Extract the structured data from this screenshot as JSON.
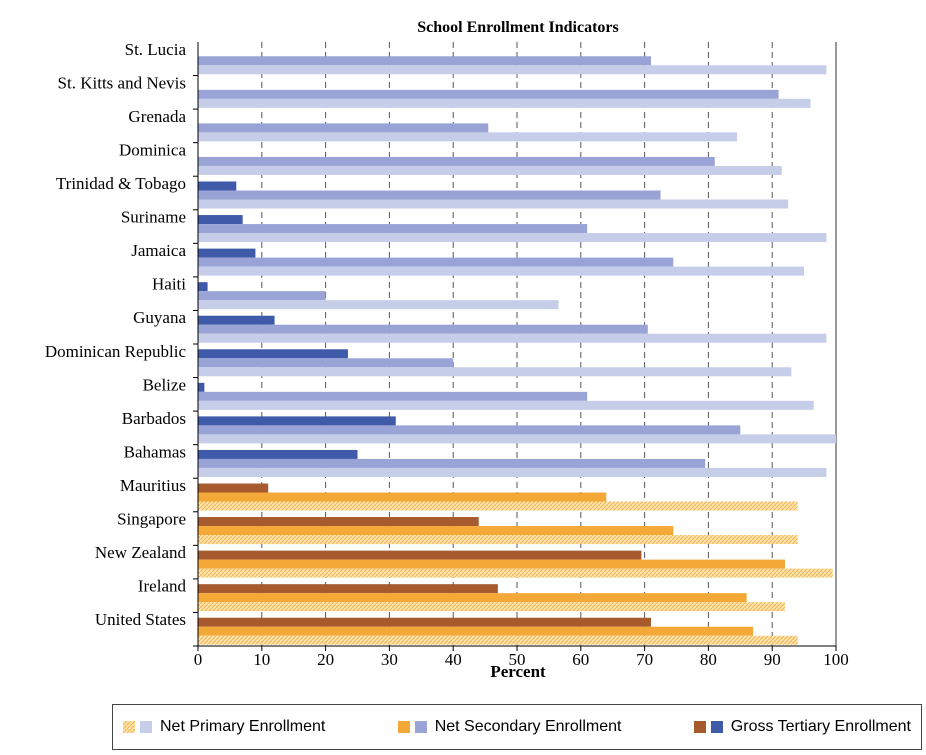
{
  "chart_data": {
    "type": "bar",
    "orientation": "horizontal",
    "title": "School Enrollment Indicators",
    "xlabel": "Percent",
    "ylabel": "",
    "xlim": [
      0,
      100
    ],
    "xticks": [
      0,
      10,
      20,
      30,
      40,
      50,
      60,
      70,
      80,
      90,
      100
    ],
    "grid": "dashed vertical at 10,20,...,90 (dark gray), solid at 100",
    "legend_position": "bottom",
    "categories": [
      "St. Lucia",
      "St. Kitts and Nevis",
      "Grenada",
      "Dominica",
      "Trinidad & Tobago",
      "Suriname",
      "Jamaica",
      "Haiti",
      "Guyana",
      "Dominican Republic",
      "Belize",
      "Barbados",
      "Bahamas",
      "Mauritius",
      "Singapore",
      "New Zealand",
      "Ireland",
      "United States"
    ],
    "group": [
      "caribbean",
      "caribbean",
      "caribbean",
      "caribbean",
      "caribbean",
      "caribbean",
      "caribbean",
      "caribbean",
      "caribbean",
      "caribbean",
      "caribbean",
      "caribbean",
      "caribbean",
      "comparison",
      "comparison",
      "comparison",
      "comparison",
      "comparison"
    ],
    "series": [
      {
        "name": "Gross Tertiary Enrollment",
        "values": [
          null,
          null,
          null,
          null,
          6,
          7,
          9,
          1.5,
          12,
          23.5,
          1,
          31,
          25,
          11,
          44,
          69.5,
          47,
          71
        ]
      },
      {
        "name": "Net Secondary Enrollment",
        "values": [
          71,
          91,
          45.5,
          81,
          72.5,
          61,
          74.5,
          20,
          70.5,
          40,
          61,
          85,
          79.5,
          64,
          74.5,
          92,
          86,
          87
        ]
      },
      {
        "name": "Net Primary Enrollment",
        "values": [
          98.5,
          96,
          84.5,
          91.5,
          92.5,
          98.5,
          95,
          56.5,
          98.5,
          93,
          96.5,
          100,
          98.5,
          94,
          94,
          99.5,
          92,
          94
        ]
      }
    ],
    "colors": {
      "caribbean": {
        "Net Primary Enrollment": "#c5cde8",
        "Net Secondary Enrollment": "#99a3d6",
        "Gross Tertiary Enrollment": "#3e5aa8"
      },
      "comparison": {
        "Net Primary Enrollment": "#f8d387",
        "Net Secondary Enrollment": "#f3a838",
        "Gross Tertiary Enrollment": "#a65a2e"
      }
    }
  },
  "legend": {
    "items": [
      {
        "label": "Net Primary Enrollment",
        "swatches": [
          "hatched-orange",
          "light-blue"
        ]
      },
      {
        "label": "Net Secondary Enrollment",
        "swatches": [
          "orange",
          "medium-blue"
        ]
      },
      {
        "label": "Gross Tertiary Enrollment",
        "swatches": [
          "brown",
          "dark-blue"
        ]
      }
    ]
  }
}
